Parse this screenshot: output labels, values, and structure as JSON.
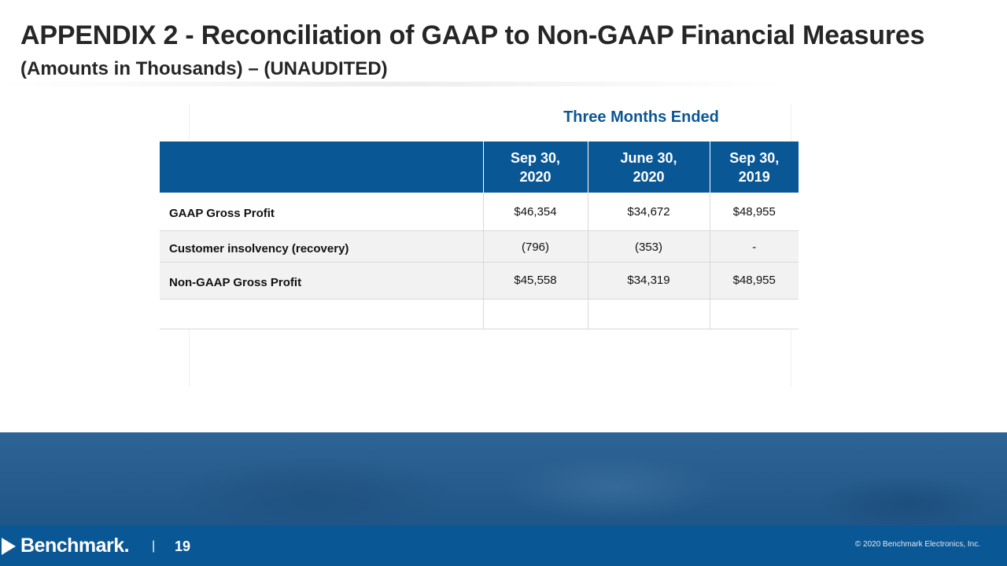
{
  "title": "APPENDIX 2 - Reconciliation of GAAP to Non-GAAP Financial Measures",
  "subtitle": "(Amounts in Thousands) – (UNAUDITED)",
  "table": {
    "period_header": "Three Months Ended",
    "columns": [
      {
        "line1": "Sep 30,",
        "line2": "2020"
      },
      {
        "line1": "June 30,",
        "line2": "2020"
      },
      {
        "line1": "Sep 30,",
        "line2": "2019"
      }
    ],
    "rows": [
      {
        "label": "GAAP Gross Profit",
        "values": [
          "$46,354",
          "$34,672",
          "$48,955"
        ]
      },
      {
        "label": "Customer insolvency (recovery)",
        "values": [
          "(796)",
          "(353)",
          "-"
        ]
      },
      {
        "label": "Non-GAAP Gross Profit",
        "values": [
          "$45,558",
          "$34,319",
          "$48,955"
        ]
      }
    ]
  },
  "footer": {
    "logo_text": "Benchmark.",
    "separator": "|",
    "page_number": "19",
    "copyright": "© 2020 Benchmark Electronics, Inc."
  }
}
